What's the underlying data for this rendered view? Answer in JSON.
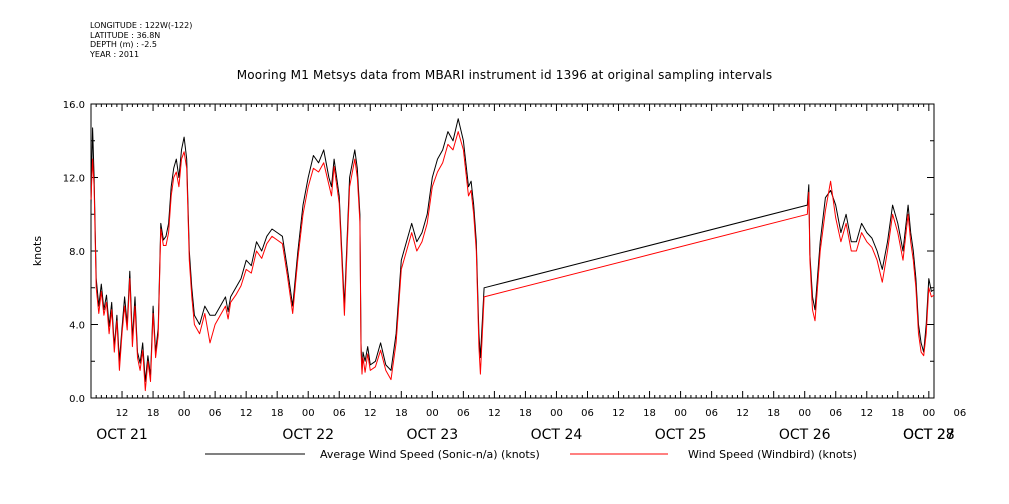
{
  "header": {
    "longitude": "LONGITUDE : 122W(-122)",
    "latitude": "LATITUDE : 36.8N",
    "depth": "DEPTH (m) : -2.5",
    "year": "YEAR : 2011"
  },
  "chart_data": {
    "type": "line",
    "title": "Mooring M1 Metsys data from MBARI instrument id 1396 at original sampling intervals",
    "ylabel": "knots",
    "xlabel": "",
    "ylim": [
      0,
      16
    ],
    "yticks": [
      "0.0",
      "4.0",
      "8.0",
      "12.0",
      "16.0"
    ],
    "xlim_hours": [
      0,
      163
    ],
    "x_tick_hours": [
      "12",
      "18",
      "00",
      "06",
      "12",
      "18",
      "00",
      "06",
      "12",
      "18",
      "00",
      "06",
      "12",
      "18",
      "00",
      "06",
      "12",
      "18",
      "00",
      "06",
      "12",
      "18",
      "00",
      "06",
      "12",
      "18",
      "00",
      "06"
    ],
    "day_labels": [
      "OCT 21",
      "OCT 22",
      "OCT 23",
      "OCT 24",
      "OCT 25",
      "OCT 26",
      "OCT 27",
      "OCT 28"
    ],
    "series": [
      {
        "name": "Average Wind Speed (Sonic-n/a) (knots)",
        "color": "#000000",
        "x": [
          0,
          0.3,
          0.6,
          1,
          1.5,
          2,
          2.5,
          3,
          3.5,
          4,
          4.5,
          5,
          5.5,
          6,
          6.5,
          7,
          7.5,
          8,
          8.5,
          9,
          9.5,
          10,
          10.5,
          11,
          11.5,
          12,
          12.5,
          13,
          13.5,
          14,
          14.5,
          15,
          15.5,
          16,
          16.5,
          17,
          17.5,
          18,
          18.5,
          19,
          19.5,
          20,
          21,
          22,
          23,
          24,
          25,
          26,
          26.5,
          27,
          28,
          29,
          30,
          31,
          32,
          33,
          34,
          35,
          36,
          37,
          38,
          39,
          40,
          41,
          42,
          43,
          44,
          45,
          46,
          46.5,
          47,
          48,
          49,
          50,
          51,
          51.5,
          52,
          52.2,
          52.4,
          52.6,
          53,
          53.5,
          54,
          55,
          56,
          57,
          58,
          59,
          60,
          61,
          62,
          63,
          64,
          65,
          66,
          67,
          68,
          69,
          70,
          71,
          72,
          73,
          73.5,
          74,
          74.5,
          75,
          75.3,
          76,
          138.5,
          138.8,
          139,
          139.5,
          140,
          141,
          142,
          143,
          144,
          145,
          146,
          147,
          148,
          149,
          150,
          151,
          152,
          153,
          154,
          155,
          156,
          157,
          158,
          158.5,
          159,
          159.5,
          160,
          160.5,
          161,
          161.5,
          162,
          162.5,
          163
        ],
        "y": [
          10.5,
          14.7,
          12.0,
          6.5,
          5.0,
          6.2,
          4.8,
          5.6,
          3.9,
          5.2,
          2.8,
          4.5,
          2.0,
          3.8,
          5.5,
          4.0,
          6.9,
          3.2,
          5.5,
          2.5,
          1.9,
          3.0,
          0.9,
          2.3,
          1.2,
          5.0,
          2.5,
          3.8,
          9.5,
          8.6,
          8.8,
          9.5,
          11.5,
          12.5,
          13.0,
          12.0,
          13.5,
          14.2,
          13.0,
          8.0,
          6.0,
          4.5,
          4.0,
          5.0,
          4.5,
          4.5,
          5.0,
          5.5,
          4.7,
          5.5,
          6.0,
          6.5,
          7.5,
          7.2,
          8.5,
          8.0,
          8.8,
          9.2,
          9.0,
          8.8,
          7.0,
          5.0,
          8.0,
          10.5,
          12.0,
          13.2,
          12.8,
          13.5,
          12.0,
          11.5,
          13.0,
          11.0,
          5.0,
          12.0,
          13.5,
          12.5,
          10.0,
          3.0,
          1.5,
          2.5,
          2.0,
          2.8,
          1.8,
          2.0,
          3.0,
          1.8,
          1.5,
          3.5,
          7.5,
          8.5,
          9.5,
          8.5,
          9.0,
          10.0,
          12.0,
          13.0,
          13.5,
          14.5,
          14.0,
          15.2,
          14.0,
          11.5,
          11.8,
          10.5,
          8.5,
          3.5,
          2.2,
          6.0,
          10.5,
          11.6,
          7.8,
          5.5,
          4.8,
          8.5,
          10.9,
          11.3,
          10.5,
          9.0,
          10.0,
          8.5,
          8.5,
          9.5,
          9.0,
          8.7,
          8.0,
          7.0,
          8.5,
          10.5,
          9.5,
          8.0,
          10.5,
          9.0,
          8.0,
          6.5,
          4.0,
          3.0,
          2.5,
          4.0,
          6.5,
          5.8,
          5.9
        ]
      },
      {
        "name": "Wind Speed (Windbird) (knots)",
        "color": "#ff0000",
        "x": [
          0,
          0.3,
          0.6,
          1,
          1.5,
          2,
          2.5,
          3,
          3.5,
          4,
          4.5,
          5,
          5.5,
          6,
          6.5,
          7,
          7.5,
          8,
          8.5,
          9,
          9.5,
          10,
          10.5,
          11,
          11.5,
          12,
          12.5,
          13,
          13.5,
          14,
          14.5,
          15,
          15.5,
          16,
          16.5,
          17,
          17.5,
          18,
          18.5,
          19,
          19.5,
          20,
          21,
          22,
          23,
          24,
          25,
          26,
          26.5,
          27,
          28,
          29,
          30,
          31,
          32,
          33,
          34,
          35,
          36,
          37,
          38,
          39,
          40,
          41,
          42,
          43,
          44,
          45,
          46,
          46.5,
          47,
          48,
          49,
          50,
          51,
          51.5,
          52,
          52.2,
          52.4,
          52.6,
          53,
          53.5,
          54,
          55,
          56,
          57,
          58,
          59,
          60,
          61,
          62,
          63,
          64,
          65,
          66,
          67,
          68,
          69,
          70,
          71,
          72,
          73,
          73.5,
          74,
          74.5,
          75,
          75.3,
          76,
          138.5,
          138.8,
          139,
          139.5,
          140,
          141,
          142,
          143,
          144,
          145,
          146,
          147,
          148,
          149,
          150,
          151,
          152,
          153,
          154,
          155,
          156,
          157,
          158,
          158.5,
          159,
          159.5,
          160,
          160.5,
          161,
          161.5,
          162,
          162.5,
          163
        ],
        "y": [
          10.8,
          13.0,
          11.5,
          6.0,
          4.6,
          5.8,
          4.5,
          5.2,
          3.5,
          4.8,
          2.5,
          4.2,
          1.5,
          3.5,
          5.0,
          3.7,
          6.5,
          2.8,
          5.0,
          2.2,
          1.5,
          2.6,
          0.4,
          2.0,
          0.9,
          4.6,
          2.2,
          3.4,
          9.2,
          8.3,
          8.3,
          9.0,
          11.0,
          12.0,
          12.3,
          11.5,
          13.0,
          13.4,
          12.5,
          7.5,
          5.5,
          4.0,
          3.5,
          4.6,
          3.0,
          4.0,
          4.5,
          5.0,
          4.3,
          5.2,
          5.6,
          6.1,
          7.0,
          6.8,
          8.0,
          7.6,
          8.4,
          8.8,
          8.6,
          8.4,
          6.6,
          4.6,
          7.6,
          10.0,
          11.5,
          12.5,
          12.3,
          12.8,
          11.6,
          11.0,
          12.6,
          10.6,
          4.5,
          11.5,
          13.0,
          12.0,
          9.6,
          2.6,
          1.3,
          2.2,
          1.4,
          2.4,
          1.5,
          1.7,
          2.6,
          1.5,
          1.0,
          3.0,
          7.0,
          8.0,
          9.0,
          8.0,
          8.5,
          9.5,
          11.5,
          12.3,
          12.8,
          13.8,
          13.5,
          14.5,
          13.5,
          11.0,
          11.3,
          10.0,
          8.0,
          2.8,
          1.3,
          5.5,
          10.0,
          11.2,
          7.5,
          4.8,
          4.2,
          8.0,
          10.2,
          11.8,
          9.8,
          8.5,
          9.5,
          8.0,
          8.0,
          9.0,
          8.5,
          8.2,
          7.5,
          6.3,
          8.0,
          10.0,
          9.0,
          7.5,
          10.0,
          8.5,
          7.5,
          6.0,
          3.5,
          2.5,
          2.3,
          3.5,
          6.0,
          5.5,
          5.6
        ]
      }
    ]
  }
}
